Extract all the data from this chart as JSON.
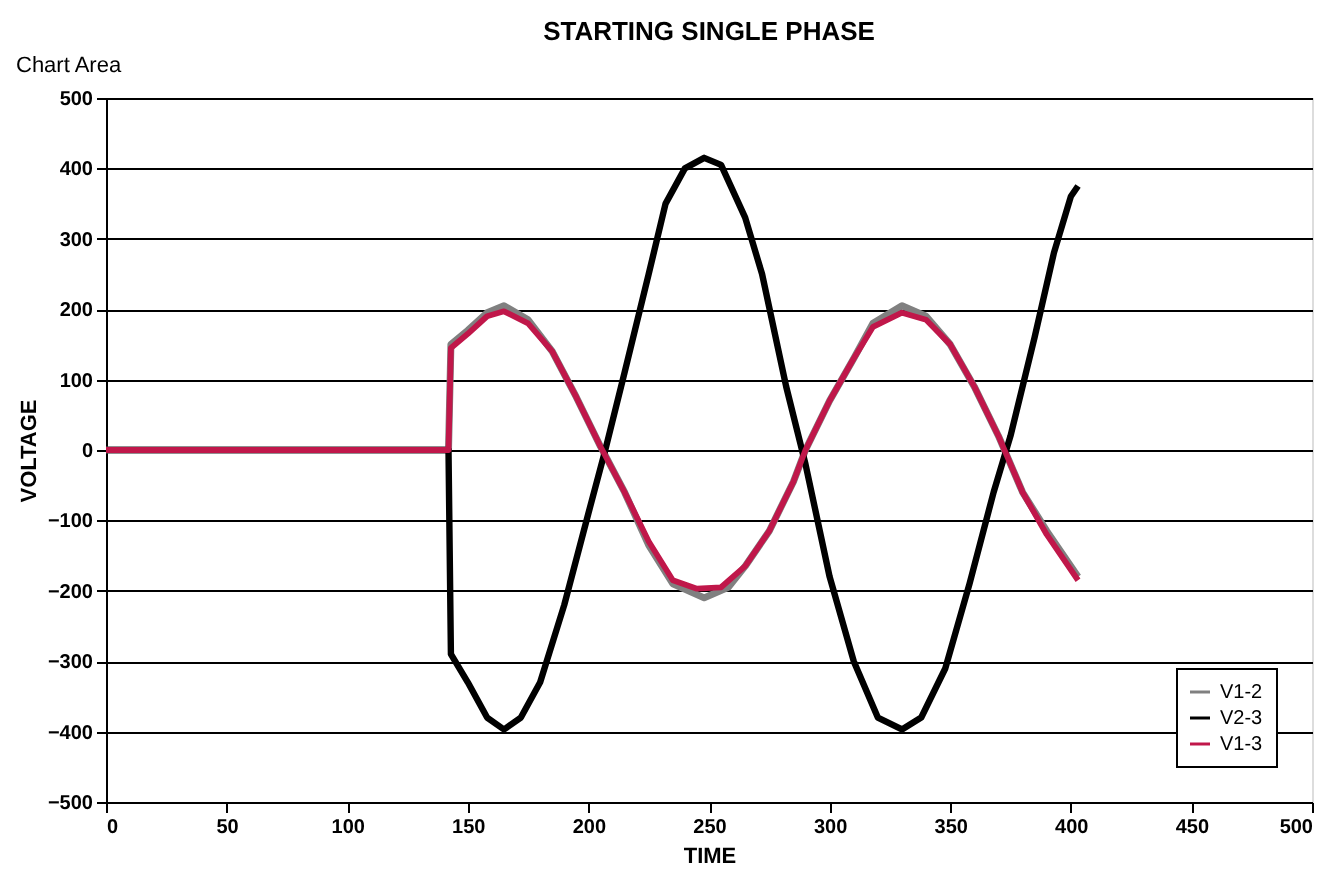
{
  "chart_data": {
    "type": "line",
    "title": "STARTING SINGLE PHASE",
    "xlabel": "TIME",
    "ylabel": "VOLTAGE",
    "annotations": [
      "Chart Area"
    ],
    "xlim": [
      0,
      500
    ],
    "xticks": [
      0,
      50,
      100,
      150,
      200,
      250,
      300,
      350,
      400,
      450,
      500
    ],
    "ylim": [
      -500,
      500
    ],
    "yticks": [
      -500,
      -400,
      -300,
      -200,
      -100,
      0,
      100,
      200,
      300,
      400,
      500
    ],
    "grid": "y",
    "legend": "bottom right",
    "marker": "none",
    "line_style": "solid",
    "series": [
      {
        "name": "V1-2",
        "color": "#808080",
        "x": [
          0,
          142,
          143,
          150,
          158,
          165,
          175,
          185,
          195,
          205,
          215,
          225,
          235,
          248,
          258,
          265,
          275,
          285,
          290,
          300,
          310,
          318,
          330,
          340,
          350,
          360,
          370,
          380,
          390,
          403
        ],
        "values": [
          0,
          0,
          150,
          170,
          195,
          205,
          185,
          140,
          75,
          5,
          -60,
          -135,
          -190,
          -210,
          -195,
          -165,
          -115,
          -45,
          0,
          70,
          130,
          180,
          205,
          190,
          150,
          90,
          20,
          -60,
          -115,
          -180
        ]
      },
      {
        "name": "V2-3",
        "color": "#000000",
        "x": [
          0,
          142,
          143,
          150,
          158,
          165,
          172,
          180,
          190,
          200,
          207,
          215,
          225,
          232,
          240,
          248,
          255,
          265,
          272,
          282,
          290,
          300,
          310,
          320,
          330,
          338,
          348,
          358,
          368,
          375,
          385,
          393,
          400,
          403
        ],
        "values": [
          0,
          0,
          -290,
          -330,
          -380,
          -397,
          -380,
          -330,
          -220,
          -90,
          0,
          110,
          250,
          350,
          400,
          415,
          405,
          330,
          250,
          90,
          -20,
          -180,
          -300,
          -380,
          -397,
          -380,
          -310,
          -190,
          -60,
          20,
          160,
          280,
          360,
          375
        ]
      },
      {
        "name": "V1-3",
        "color": "#c0174a",
        "x": [
          0,
          142,
          143,
          150,
          158,
          165,
          175,
          185,
          195,
          205,
          215,
          225,
          235,
          245,
          255,
          265,
          275,
          285,
          290,
          300,
          310,
          318,
          330,
          340,
          350,
          360,
          370,
          380,
          390,
          403
        ],
        "values": [
          0,
          0,
          145,
          165,
          190,
          197,
          180,
          140,
          75,
          5,
          -60,
          -130,
          -185,
          -197,
          -195,
          -165,
          -115,
          -45,
          0,
          70,
          130,
          175,
          195,
          185,
          150,
          90,
          20,
          -60,
          -120,
          -185
        ]
      }
    ]
  }
}
